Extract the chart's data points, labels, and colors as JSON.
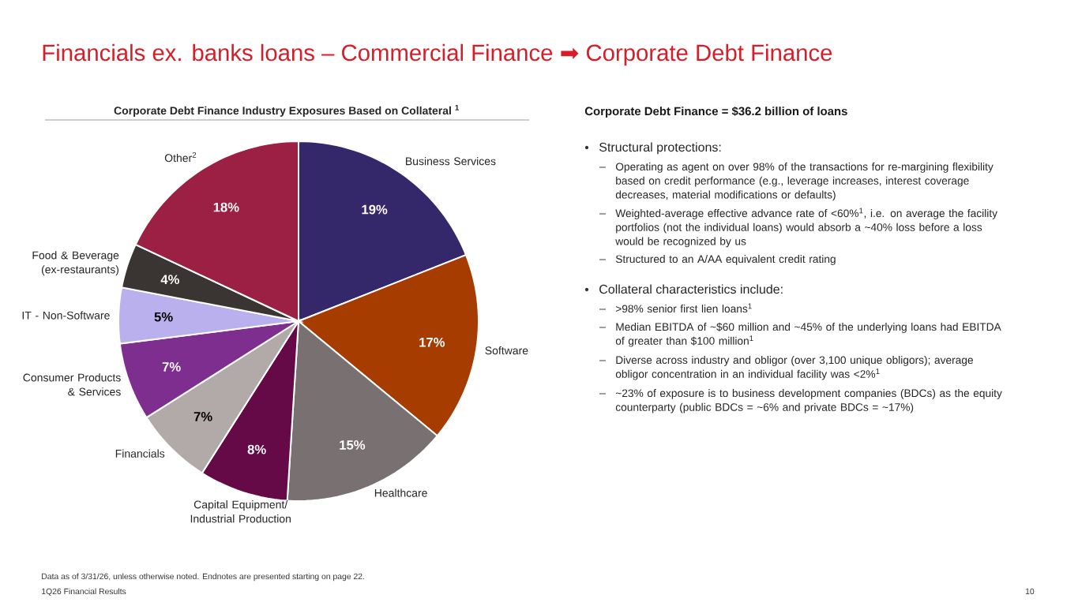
{
  "chart_data": {
    "type": "pie",
    "title": "Financials ex. banks loans – Commercial Finance ➡ Corporate Debt Finance",
    "subtitle": "Corporate Debt Finance Industry Exposures Based on Collateral $^{1}$",
    "categories": [
      "Business Services",
      "Software",
      "Healthcare",
      "Capital Equipment/ Industrial Production",
      "Financials",
      "Consumer Products & Services",
      "IT - Non-Software",
      "Food & Beverage (ex-restaurants)",
      "Other$^{2}$"
    ],
    "values": [
      19,
      17,
      15,
      8,
      7,
      7,
      5,
      4,
      18
    ],
    "colors": [
      "#35286a",
      "#a63c00",
      "#797071",
      "#650a47",
      "#b2aaa9",
      "#7e2e8e",
      "#bbb0ee",
      "#3a3432",
      "#9c2043"
    ],
    "value_labels": [
      "19%",
      "17%",
      "15%",
      "8%",
      "7%",
      "7%",
      "5%",
      "4%",
      "18%"
    ],
    "annotations": [
      "Corporate Debt Finance = $36.2 billion of loans",
      "Structural protections:",
      "Operating as agent on over 98% of the transactions for re-margining flexibility based on credit performance (e.g., leverage increases, interest coverage decreases, material modifications or defaults)",
      "Weighted-average effective advance rate of <60%$^{1}$, i.e. on average the facility portfolios (not the individual loans) would absorb a ~40% loss before a loss would be recognized by us",
      "Structured to an A/AA equivalent credit rating",
      "Collateral characteristics include:",
      ">98% senior first lien loans$^{1}$",
      "Median EBITDA of ~$60 million and ~45% of the underlying loans had EBITDA of greater than $100 million$^{1}$",
      "Diverse across industry and obligor (over 3,100 unique obligors); average obligor concentration in an individual facility was <2%$^{1}$",
      "~23% of exposure is to business development companies (BDCs) as the equity counterparty (public BDCs = ~6% and private BDCs = ~17%)",
      "Data as of 3/31/26, unless otherwise noted. Endnotes are presented starting on page 22.",
      "1Q26 Financial Results",
      "10"
    ]
  }
}
